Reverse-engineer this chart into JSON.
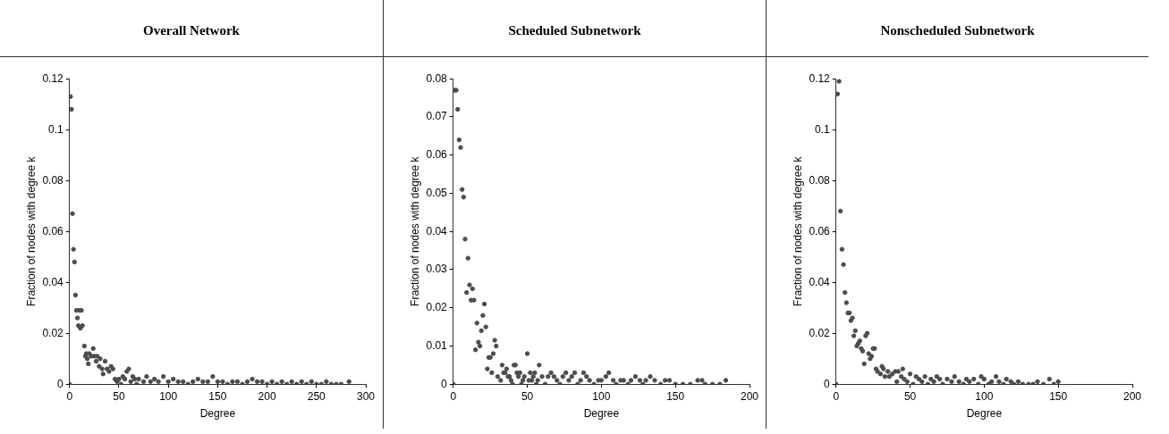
{
  "chart_data": [
    {
      "type": "scatter",
      "title": "Overall Network",
      "xlabel": "Degree",
      "ylabel": "Fraction of nodes with degree k",
      "marker": "circle",
      "grid": false,
      "legend": false,
      "xlim": [
        0,
        300
      ],
      "xticks": [
        0,
        50,
        100,
        150,
        200,
        250,
        300
      ],
      "ylim": [
        0,
        0.12
      ],
      "yticks": [
        0,
        0.02,
        0.04,
        0.06,
        0.08,
        0.1,
        0.12
      ],
      "series": [
        {
          "color": "#4d4d4d",
          "x": [
            0,
            1,
            2,
            3,
            4,
            5,
            6,
            7,
            8,
            9,
            10,
            11,
            12,
            13,
            15,
            16,
            17,
            18,
            19,
            20,
            22,
            24,
            25,
            27,
            28,
            30,
            31,
            33,
            34,
            36,
            38,
            40,
            42,
            44,
            46,
            48,
            50,
            52,
            54,
            56,
            58,
            60,
            62,
            64,
            66,
            68,
            70,
            75,
            78,
            82,
            86,
            90,
            95,
            100,
            105,
            110,
            115,
            120,
            125,
            130,
            135,
            140,
            145,
            150,
            155,
            160,
            165,
            170,
            175,
            180,
            185,
            190,
            195,
            200,
            205,
            210,
            215,
            220,
            225,
            230,
            235,
            240,
            245,
            250,
            255,
            260,
            265,
            270,
            275,
            283
          ],
          "values": [
            0,
            0.113,
            0.108,
            0.067,
            0.053,
            0.048,
            0.035,
            0.029,
            0.026,
            0.023,
            0.029,
            0.022,
            0.029,
            0.023,
            0.015,
            0.011,
            0.012,
            0.01,
            0.008,
            0.012,
            0.011,
            0.014,
            0.011,
            0.009,
            0.011,
            0.007,
            0.01,
            0.006,
            0.004,
            0.009,
            0.006,
            0.005,
            0.007,
            0.006,
            0.002,
            0.001,
            0.002,
            0,
            0.003,
            0.002,
            0.005,
            0.006,
            0.001,
            0.003,
            0.002,
            0,
            0.002,
            0.001,
            0.003,
            0.001,
            0.002,
            0.001,
            0.003,
            0.001,
            0.002,
            0.001,
            0.001,
            0,
            0.001,
            0.002,
            0.001,
            0.001,
            0.003,
            0.001,
            0.001,
            0,
            0.001,
            0.001,
            0,
            0.001,
            0.002,
            0.001,
            0.001,
            0,
            0.001,
            0,
            0.001,
            0,
            0.001,
            0,
            0.001,
            0,
            0.001,
            0,
            0,
            0.001,
            0,
            0,
            0,
            0.001
          ]
        }
      ]
    },
    {
      "type": "scatter",
      "title": "Scheduled Subnetwork",
      "xlabel": "Degree",
      "ylabel": "Fraction of nodes with degree k",
      "marker": "circle",
      "grid": false,
      "legend": false,
      "xlim": [
        0,
        200
      ],
      "xticks": [
        0,
        50,
        100,
        150,
        200
      ],
      "ylim": [
        0,
        0.08
      ],
      "yticks": [
        0,
        0.01,
        0.02,
        0.03,
        0.04,
        0.05,
        0.06,
        0.07,
        0.08
      ],
      "series": [
        {
          "color": "#4d4d4d",
          "x": [
            0,
            1,
            2,
            3,
            4,
            5,
            6,
            7,
            8,
            10,
            9,
            11,
            12,
            13,
            14,
            15,
            16,
            17,
            18,
            19,
            20,
            21,
            22,
            23,
            24,
            25,
            26,
            27,
            28,
            29,
            30,
            32,
            33,
            34,
            35,
            36,
            37,
            38,
            39,
            40,
            41,
            42,
            43,
            44,
            45,
            46,
            47,
            48,
            50,
            51,
            52,
            53,
            54,
            55,
            56,
            57,
            58,
            60,
            62,
            64,
            66,
            68,
            70,
            72,
            74,
            76,
            78,
            80,
            82,
            84,
            86,
            88,
            90,
            92,
            95,
            98,
            100,
            103,
            105,
            108,
            110,
            113,
            115,
            118,
            120,
            123,
            126,
            128,
            130,
            133,
            136,
            140,
            143,
            146,
            150,
            155,
            160,
            165,
            168,
            170,
            175,
            180,
            184
          ],
          "values": [
            0,
            0.077,
            0.077,
            0.072,
            0.064,
            0.062,
            0.051,
            0.049,
            0.038,
            0.033,
            0.024,
            0.026,
            0.022,
            0.025,
            0.022,
            0.009,
            0.016,
            0.011,
            0.01,
            0.014,
            0.018,
            0.021,
            0.015,
            0.004,
            0.007,
            0.007,
            0.003,
            0.008,
            0.0115,
            0.01,
            0.002,
            0.001,
            0.005,
            0.003,
            0.003,
            0.004,
            0.002,
            0.002,
            0.001,
            0,
            0.005,
            0.005,
            0.003,
            0.002,
            0.003,
            0,
            0.001,
            0.002,
            0.008,
            0.001,
            0.003,
            0.001,
            0.002,
            0.003,
            0,
            0.001,
            0.005,
            0.002,
            0,
            0.002,
            0.003,
            0.002,
            0.001,
            0,
            0.002,
            0.003,
            0.001,
            0.002,
            0.003,
            0,
            0.001,
            0.003,
            0.002,
            0.001,
            0,
            0.001,
            0.001,
            0.002,
            0.003,
            0.001,
            0,
            0.001,
            0.001,
            0,
            0.001,
            0.002,
            0.001,
            0,
            0.001,
            0.002,
            0.001,
            0,
            0.001,
            0.001,
            0,
            0,
            0,
            0.001,
            0.001,
            0,
            0,
            0,
            0.001
          ]
        }
      ]
    },
    {
      "type": "scatter",
      "title": "Nonscheduled Subnetwork",
      "xlabel": "Degree",
      "ylabel": "Fraction of nodes with degree k",
      "marker": "circle",
      "grid": false,
      "legend": false,
      "xlim": [
        0,
        200
      ],
      "xticks": [
        0,
        50,
        100,
        150,
        200
      ],
      "ylim": [
        0,
        0.12
      ],
      "yticks": [
        0,
        0.02,
        0.04,
        0.06,
        0.08,
        0.1,
        0.12
      ],
      "series": [
        {
          "color": "#4d4d4d",
          "x": [
            0,
            1,
            2,
            3,
            4,
            5,
            6,
            7,
            8,
            9,
            10,
            11,
            12,
            13,
            14,
            15,
            16,
            17,
            18,
            19,
            20,
            21,
            22,
            23,
            24,
            25,
            26,
            27,
            28,
            30,
            31,
            32,
            33,
            35,
            36,
            38,
            40,
            41,
            42,
            44,
            45,
            46,
            48,
            50,
            52,
            54,
            56,
            58,
            60,
            62,
            64,
            66,
            68,
            70,
            72,
            75,
            78,
            80,
            83,
            86,
            88,
            90,
            93,
            96,
            98,
            100,
            103,
            105,
            108,
            110,
            113,
            115,
            118,
            120,
            123,
            126,
            130,
            133,
            136,
            140,
            144,
            147,
            150
          ],
          "values": [
            0,
            0.114,
            0.119,
            0.068,
            0.053,
            0.047,
            0.036,
            0.032,
            0.028,
            0.028,
            0.025,
            0.026,
            0.019,
            0.021,
            0.015,
            0.016,
            0.017,
            0.014,
            0.013,
            0.008,
            0.019,
            0.02,
            0.012,
            0.01,
            0.011,
            0.014,
            0.014,
            0.006,
            0.005,
            0.004,
            0.007,
            0.006,
            0.003,
            0.005,
            0.003,
            0.004,
            0.005,
            0.001,
            0.005,
            0.003,
            0.006,
            0.002,
            0.001,
            0.004,
            0,
            0.003,
            0.002,
            0.001,
            0.003,
            0,
            0.002,
            0.001,
            0.003,
            0.002,
            0,
            0.002,
            0.001,
            0.003,
            0.001,
            0,
            0.002,
            0.001,
            0.002,
            0,
            0.003,
            0.002,
            0,
            0.001,
            0.003,
            0.001,
            0,
            0.002,
            0.001,
            0,
            0.001,
            0,
            0,
            0,
            0.001,
            0,
            0.002,
            0,
            0.001
          ]
        }
      ]
    }
  ]
}
